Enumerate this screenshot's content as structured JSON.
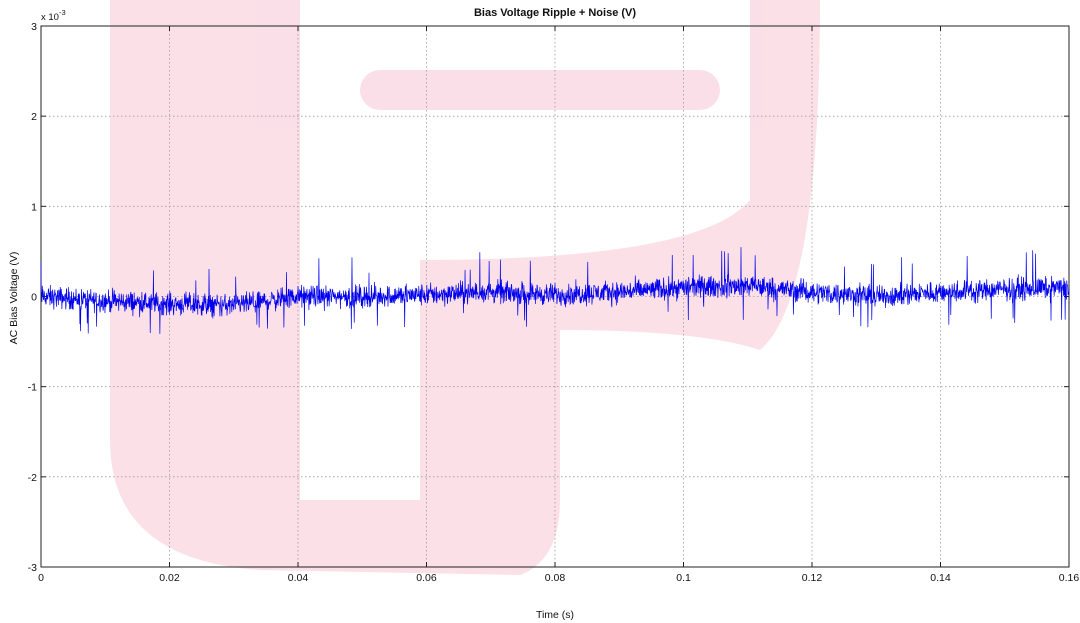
{
  "chart_data": {
    "type": "line",
    "title": "Bias Voltage Ripple + Noise (V)",
    "xlabel": "Time (s)",
    "ylabel": "AC Bias Voltage (V)",
    "y_exponent_base": "x 10",
    "y_exponent_power": "-3",
    "xlim": [
      0,
      0.16
    ],
    "ylim": [
      -3,
      3
    ],
    "y_units_note": "values in units of 1e-3 V",
    "grid": true,
    "x_ticks": [
      "0",
      "0.02",
      "0.04",
      "0.06",
      "0.08",
      "0.1",
      "0.12",
      "0.14",
      "0.16"
    ],
    "y_ticks": [
      "-3",
      "-2",
      "-1",
      "0",
      "1",
      "2",
      "3"
    ],
    "line_color": "#0000ee",
    "series": [
      {
        "x": [
          0,
          0.01,
          0.02,
          0.03,
          0.04,
          0.05,
          0.06,
          0.07,
          0.08,
          0.09,
          0.1,
          0.11,
          0.12,
          0.13,
          0.14,
          0.15,
          0.16
        ],
        "values": [
          0.0,
          -0.05,
          -0.08,
          -0.1,
          0.0,
          0.0,
          0.02,
          0.05,
          0.02,
          0.05,
          0.1,
          0.12,
          0.05,
          0.0,
          0.05,
          0.08,
          0.1
        ],
        "noise_amplitude": 0.12,
        "spike_range": [
          -0.38,
          0.45
        ]
      }
    ]
  },
  "watermark": {
    "color": "#f7c6d6"
  }
}
